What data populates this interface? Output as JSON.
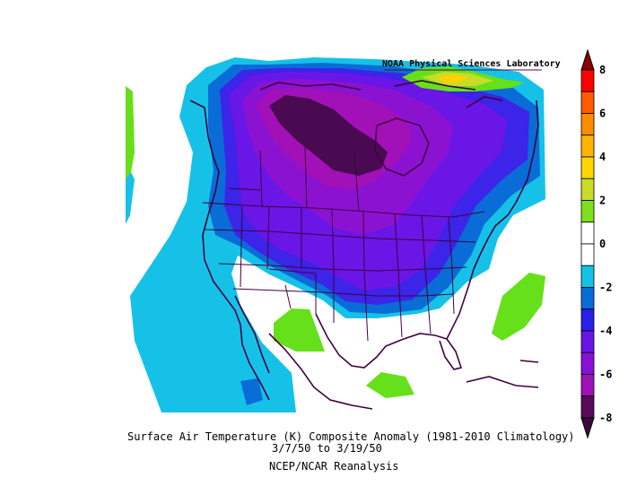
{
  "credit": "NOAA Physical Sciences Laboratory",
  "title": "Surface Air Temperature (K) Composite Anomaly (1981-2010 Climatology)",
  "dates": "3/7/50  to 3/19/50",
  "source": "NCEP/NCAR Reanalysis",
  "colorbar": {
    "labels": [
      "8",
      "6",
      "4",
      "2",
      "0",
      "-2",
      "-4",
      "-6",
      "-8"
    ],
    "bins": [
      "#ff0000",
      "#ff5a00",
      "#ff8c00",
      "#ffb400",
      "#ffd700",
      "#c8dc28",
      "#7ee01a",
      "#ffffff",
      "#ffffff",
      "#12c3e6",
      "#0a6cd6",
      "#2a20e8",
      "#6a14e6",
      "#8a10d8",
      "#a010b8",
      "#5a0a5a"
    ]
  },
  "colors": {
    "land_outline": "#400040",
    "anomaly_neg8": "#4a0a52",
    "anomaly_neg7": "#6e0c8e",
    "anomaly_neg6": "#8c12d2",
    "anomaly_neg5": "#6a16e6",
    "anomaly_neg4": "#3c24e8",
    "anomaly_neg3": "#0a6cd6",
    "anomaly_neg2": "#16c1e8",
    "anomaly_pos1": "#66e01a",
    "anomaly_pos2": "#c8dc28",
    "anomaly_pos3": "#ffd200"
  }
}
